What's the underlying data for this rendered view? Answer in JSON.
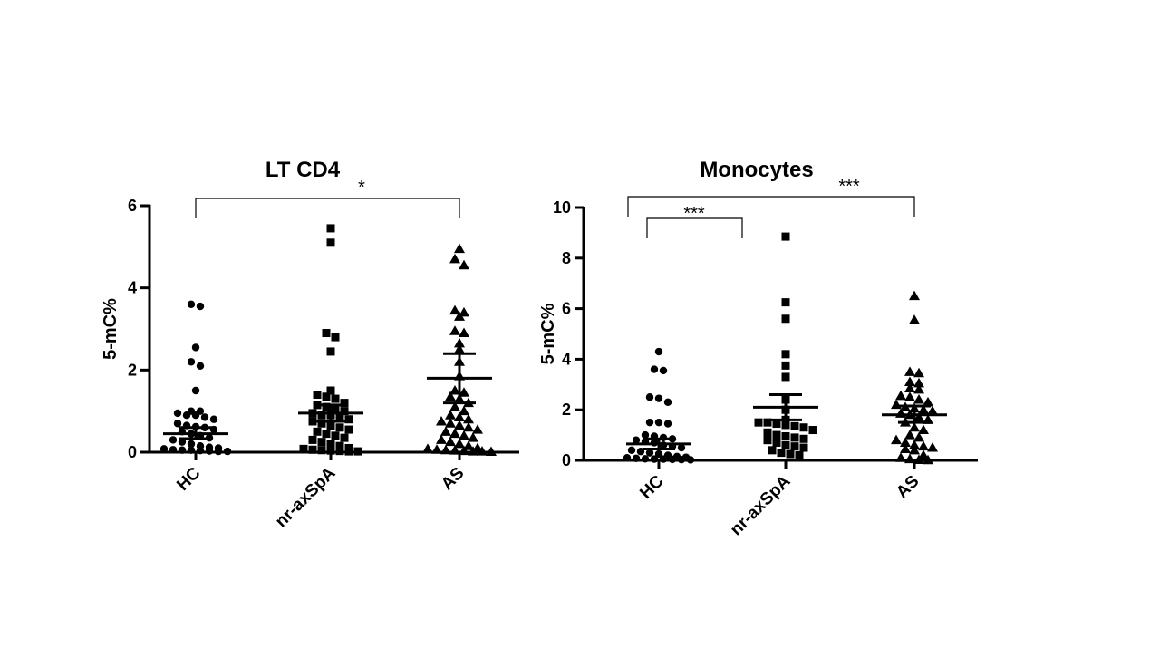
{
  "chart_data": [
    {
      "type": "scatter",
      "title": "LT CD4",
      "ylabel": "5-mC%",
      "xlabel": "",
      "categories": [
        "HC",
        "nr-axSpA",
        "AS"
      ],
      "ylim": [
        0,
        6
      ],
      "yticks": [
        "0",
        "2",
        "4",
        "6"
      ],
      "grid": false,
      "groups": [
        {
          "name": "HC",
          "marker": "circle",
          "mean": 0.45,
          "sem_low": 0.33,
          "sem_high": 0.6,
          "points": [
            3.6,
            3.55,
            2.55,
            2.2,
            2.1,
            1.5,
            1.0,
            1.0,
            0.95,
            0.9,
            0.9,
            0.85,
            0.8,
            0.7,
            0.65,
            0.62,
            0.6,
            0.55,
            0.5,
            0.45,
            0.4,
            0.35,
            0.3,
            0.25,
            0.2,
            0.15,
            0.12,
            0.1,
            0.08,
            0.06,
            0.05,
            0.05,
            0.04,
            0.03,
            0.02,
            0.02
          ]
        },
        {
          "name": "nr-axSpA",
          "marker": "square",
          "mean": 0.95,
          "sem_low": 0.75,
          "sem_high": 1.15,
          "points": [
            5.45,
            5.1,
            2.9,
            2.8,
            2.45,
            1.5,
            1.4,
            1.35,
            1.3,
            1.2,
            1.15,
            1.1,
            1.05,
            1.0,
            0.95,
            0.9,
            0.9,
            0.85,
            0.8,
            0.75,
            0.7,
            0.65,
            0.6,
            0.55,
            0.5,
            0.45,
            0.4,
            0.35,
            0.3,
            0.25,
            0.2,
            0.15,
            0.1,
            0.08,
            0.06,
            0.05,
            0.04,
            0.03,
            0.02,
            0.02
          ]
        },
        {
          "name": "AS",
          "marker": "triangle",
          "mean": 1.8,
          "sem_low": 1.2,
          "sem_high": 2.4,
          "points": [
            4.95,
            4.7,
            4.55,
            3.45,
            3.4,
            3.3,
            2.95,
            2.9,
            2.65,
            2.5,
            2.2,
            1.85,
            1.5,
            1.45,
            1.35,
            1.3,
            1.2,
            1.1,
            1.0,
            0.9,
            0.85,
            0.8,
            0.75,
            0.7,
            0.65,
            0.6,
            0.55,
            0.5,
            0.45,
            0.4,
            0.35,
            0.3,
            0.25,
            0.2,
            0.15,
            0.1,
            0.08,
            0.06,
            0.05,
            0.04,
            0.03,
            0.02,
            0.02,
            0.01
          ]
        }
      ],
      "significance": [
        {
          "from": "HC",
          "to": "AS",
          "label": "*"
        }
      ]
    },
    {
      "type": "scatter",
      "title": "Monocytes",
      "ylabel": "5-mC%",
      "xlabel": "",
      "categories": [
        "HC",
        "nr-axSpA",
        "AS"
      ],
      "ylim": [
        0,
        10
      ],
      "yticks": [
        "0",
        "2",
        "4",
        "6",
        "8",
        "10"
      ],
      "grid": false,
      "groups": [
        {
          "name": "HC",
          "marker": "circle",
          "mean": 0.65,
          "sem_low": 0.45,
          "sem_high": 0.85,
          "points": [
            4.3,
            3.6,
            3.55,
            2.5,
            2.45,
            2.3,
            1.5,
            1.5,
            1.45,
            1.0,
            0.95,
            0.9,
            0.85,
            0.8,
            0.75,
            0.7,
            0.6,
            0.55,
            0.5,
            0.4,
            0.35,
            0.3,
            0.25,
            0.2,
            0.15,
            0.12,
            0.1,
            0.08,
            0.06,
            0.05,
            0.05,
            0.04,
            0.03,
            0.02
          ]
        },
        {
          "name": "nr-axSpA",
          "marker": "square",
          "mean": 2.1,
          "sem_low": 1.6,
          "sem_high": 2.6,
          "points": [
            8.85,
            6.25,
            5.6,
            4.2,
            3.75,
            3.3,
            2.4,
            2.0,
            1.6,
            1.5,
            1.5,
            1.45,
            1.4,
            1.35,
            1.3,
            1.2,
            1.1,
            1.0,
            0.95,
            0.9,
            0.85,
            0.8,
            0.7,
            0.6,
            0.55,
            0.5,
            0.4,
            0.3,
            0.25,
            0.2
          ]
        },
        {
          "name": "AS",
          "marker": "triangle",
          "mean": 1.8,
          "sem_low": 1.5,
          "sem_high": 2.15,
          "points": [
            6.5,
            5.55,
            3.5,
            3.45,
            3.1,
            3.05,
            2.85,
            2.8,
            2.55,
            2.5,
            2.4,
            2.3,
            2.2,
            2.1,
            2.05,
            2.0,
            1.95,
            1.85,
            1.8,
            1.7,
            1.6,
            1.5,
            1.3,
            1.2,
            1.0,
            0.9,
            0.8,
            0.7,
            0.6,
            0.55,
            0.5,
            0.45,
            0.4,
            0.2,
            0.1,
            0.05,
            0.02,
            0.01
          ]
        }
      ],
      "significance": [
        {
          "from": "HC",
          "to": "nr-axSpA",
          "label": "***"
        },
        {
          "from": "HC",
          "to": "AS",
          "label": "***"
        }
      ]
    }
  ]
}
